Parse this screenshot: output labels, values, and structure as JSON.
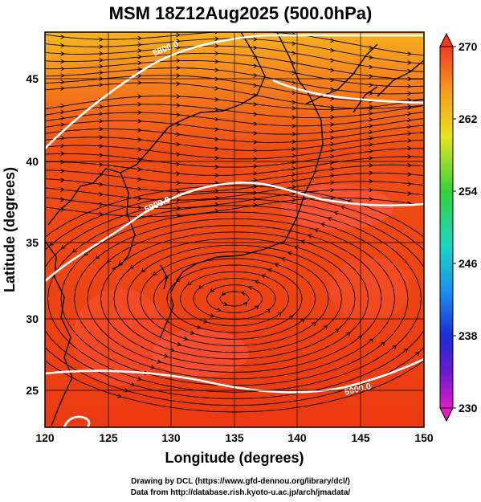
{
  "title": "MSM 18Z12Aug2025 (500.0hPa)",
  "axes": {
    "xlabel": "Longitude (degrees)",
    "ylabel": "Latitude  (degrees)",
    "xticks": [
      "120",
      "125",
      "130",
      "135",
      "140",
      "145",
      "150"
    ],
    "yticks": [
      "25",
      "30",
      "35",
      "40",
      "45"
    ],
    "xlim": [
      120,
      150
    ],
    "ylim": [
      22.4,
      47.6
    ]
  },
  "colorbar": {
    "ticks": [
      "270",
      "262",
      "254",
      "246",
      "238",
      "230"
    ],
    "range": [
      230,
      270
    ]
  },
  "contours": [
    {
      "label": "5800.0"
    },
    {
      "label": "5900.0"
    },
    {
      "label": "5900.0"
    }
  ],
  "credits": {
    "line1": "Drawing by DCL (https://www.gfd-dennou.org/library/dcl/)",
    "line2": "Data from http://database.rish.kyoto-u.ac.jp/arch/jmadata/"
  },
  "colors": {
    "field_main": "#ee3d12",
    "field_north": "#f7a41c",
    "field_warm": "#ff5a4a",
    "contour": "#ffffff",
    "streamline": "#000000"
  }
}
